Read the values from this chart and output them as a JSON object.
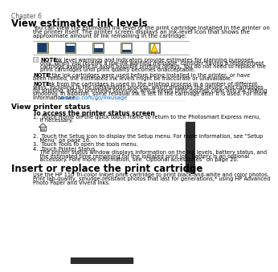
{
  "bg_color": "#ffffff",
  "tab_color": "#2d2d2d",
  "chapter_label": "Chapter 6",
  "section1_title": "View estimated ink levels",
  "section1_body": "You can view the estimated ink level of the print cartridge installed in the printer on\nthe printer itself. The printer screen displays an ink-level icon that shows the\napproximate amount of ink remaining in the cartridge:",
  "note1_text": "NOTE:   Ink level warnings and indicators provide estimates for planning purposes\nonly. When you receive a low-ink warning message, consider having a replacement\ncartridge available to avoid possible printing delays. You do not need to replace the\nprint cartridges until print quality becomes unacceptable.",
  "note2_text": "NOTE:   If the ink cartridges were used before being installed in the printer, or have\nbeen refilled, the estimated ink levels might be inaccurate or unavailable.",
  "note3_text": "NOTE:   Ink from the cartridges is used in the printing process in a number of different\nways, including in the initialization process, which prepares the device and cartridges\nfor printing, and in printhead servicing, which keeps print nozzles clear and ink flowing\nsmoothly. In addition, some residual ink is left in the cartridge after it is used. For more\ninformation see www.hp.com/go/inkusage.",
  "section2_title": "View printer status",
  "subsection2_title": "To access the printer status screen",
  "step1": "1.  Touch Home on the quick touch frame to return to the Photosmart Express menu,\n    if necessary.",
  "step2": "2.  Touch the Setup icon to display the Setup menu. For more information, see “Setup\n    Menu” on page 16.",
  "step3": "3.  Touch Tools to open the tools menu.",
  "step4": "4.  Touch Printer Status.\n    The printer status window displays information on the ink levels, battery status, and\n    the estimated time remaining for the initiated print job. Battery is an optional\n    accessory. Fore more information, see “Optional accessories” on page 20.",
  "section3_title": "Insert or replace the print cartridge",
  "section3_body1": "Use the HP 110 Tri-color Inkjet print cartridge to print black-and-white and color photos.",
  "section3_body2": "Print lab-quality, smudge-resistant photos that last for generations,* using HP Advanced\nPhoto Paper and Vivera Inks.",
  "ink_colors": [
    "#8dc63f",
    "#8dc63f",
    "#8dc63f",
    "#8dc63f",
    "#8dc63f"
  ],
  "link_color": "#0563c1",
  "text_color": "#000000",
  "gray_text": "#555555"
}
